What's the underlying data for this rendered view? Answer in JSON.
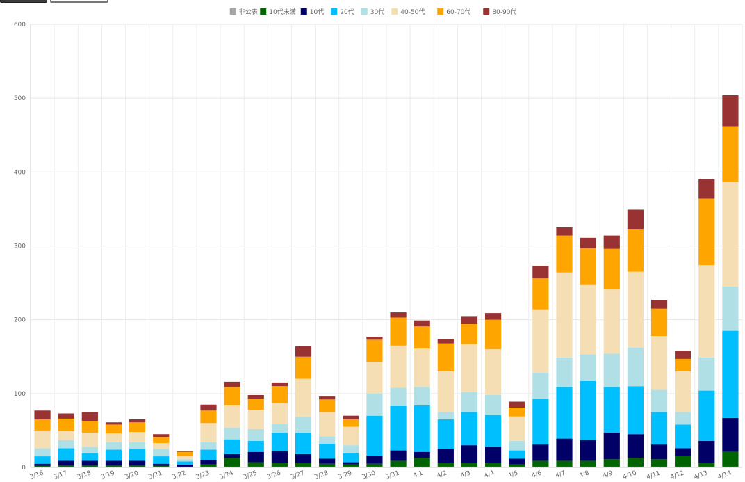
{
  "toolbar": {
    "buttons": [
      "",
      ""
    ]
  },
  "chart_data": {
    "type": "bar",
    "stacked": true,
    "title": "",
    "xlabel": "",
    "ylabel": "",
    "ylim": [
      0,
      600
    ],
    "yticks": [
      0,
      100,
      200,
      300,
      400,
      500,
      600
    ],
    "grid": true,
    "legend_position": "top",
    "categories": [
      "3/16",
      "3/17",
      "3/18",
      "3/19",
      "3/20",
      "3/21",
      "3/22",
      "3/23",
      "3/24",
      "3/25",
      "3/26",
      "3/27",
      "3/28",
      "3/29",
      "3/30",
      "3/31",
      "4/1",
      "4/2",
      "4/3",
      "4/4",
      "4/5",
      "4/6",
      "4/7",
      "4/8",
      "4/9",
      "4/10",
      "4/11",
      "4/12",
      "4/13",
      "4/14"
    ],
    "series": [
      {
        "name": "非公表",
        "color": "#a6a6a6",
        "values": [
          1,
          1,
          1,
          1,
          1,
          1,
          0,
          1,
          1,
          1,
          1,
          1,
          1,
          1,
          1,
          1,
          1,
          1,
          1,
          1,
          1,
          1,
          1,
          1,
          1,
          1,
          1,
          1,
          1,
          1
        ]
      },
      {
        "name": "10代未満",
        "color": "#006400",
        "values": [
          1,
          2,
          2,
          2,
          2,
          1,
          1,
          3,
          12,
          6,
          5,
          5,
          4,
          3,
          4,
          8,
          12,
          5,
          5,
          5,
          3,
          8,
          8,
          8,
          10,
          12,
          10,
          15,
          5,
          20
        ]
      },
      {
        "name": "10代",
        "color": "#000066",
        "values": [
          3,
          6,
          6,
          6,
          6,
          3,
          3,
          6,
          5,
          14,
          16,
          12,
          7,
          3,
          11,
          14,
          8,
          19,
          24,
          22,
          8,
          22,
          30,
          28,
          36,
          32,
          20,
          10,
          30,
          46
        ]
      },
      {
        "name": "20代",
        "color": "#00bfff",
        "values": [
          10,
          17,
          10,
          15,
          16,
          10,
          4,
          14,
          20,
          15,
          25,
          29,
          20,
          12,
          54,
          60,
          63,
          40,
          45,
          43,
          11,
          62,
          70,
          80,
          62,
          65,
          44,
          32,
          68,
          118
        ]
      },
      {
        "name": "30代",
        "color": "#b0e0e6",
        "values": [
          11,
          11,
          9,
          10,
          9,
          10,
          3,
          10,
          16,
          16,
          12,
          22,
          10,
          11,
          30,
          25,
          25,
          10,
          27,
          27,
          13,
          35,
          40,
          36,
          45,
          52,
          30,
          17,
          45,
          60
        ]
      },
      {
        "name": "40-50代",
        "color": "#f5deb3",
        "values": [
          24,
          12,
          19,
          12,
          14,
          8,
          4,
          26,
          30,
          26,
          28,
          51,
          33,
          25,
          43,
          57,
          52,
          55,
          65,
          62,
          33,
          86,
          115,
          94,
          87,
          103,
          73,
          55,
          125,
          142
        ]
      },
      {
        "name": "60-70代",
        "color": "#ffa500",
        "values": [
          15,
          17,
          16,
          12,
          13,
          8,
          6,
          17,
          25,
          15,
          23,
          30,
          17,
          10,
          30,
          38,
          30,
          38,
          27,
          40,
          12,
          42,
          50,
          50,
          55,
          58,
          37,
          17,
          90,
          75
        ]
      },
      {
        "name": "80-90代",
        "color": "#993333",
        "values": [
          12,
          7,
          12,
          3,
          4,
          4,
          1,
          8,
          7,
          5,
          5,
          14,
          4,
          5,
          4,
          7,
          8,
          6,
          10,
          9,
          8,
          17,
          11,
          14,
          18,
          26,
          12,
          11,
          26,
          42
        ]
      }
    ]
  }
}
